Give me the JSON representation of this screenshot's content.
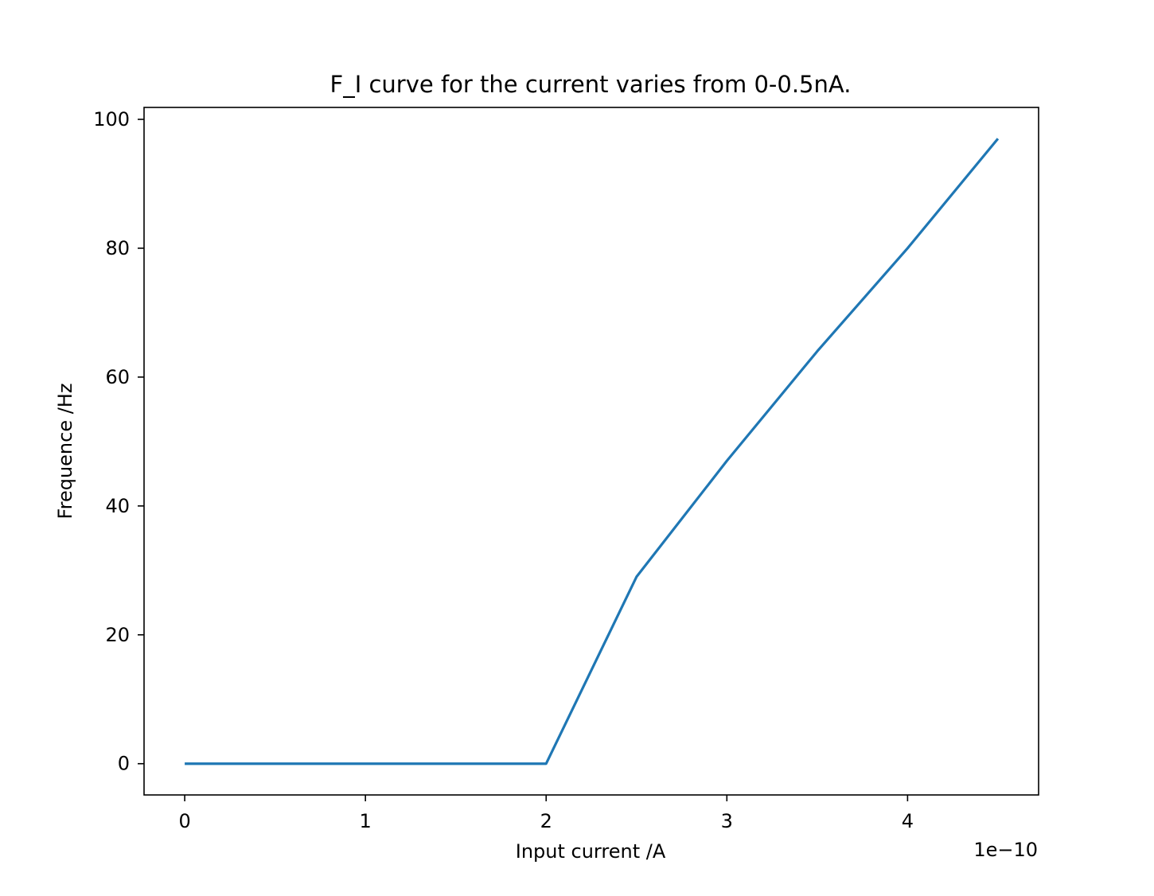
{
  "chart_data": {
    "type": "line",
    "title": "F_I curve for the current varies from 0-0.5nA.",
    "xlabel": "Input current /A",
    "ylabel": "Frequence /Hz",
    "x_offset_label": "1e−10",
    "x_scale_exponent": -10,
    "xlim": [
      -2.25e-11,
      4.725e-10
    ],
    "ylim": [
      -4.85,
      101.85
    ],
    "x_ticks": [
      0,
      1e-10,
      2e-10,
      3e-10,
      4e-10
    ],
    "x_tick_labels": [
      "0",
      "1",
      "2",
      "3",
      "4"
    ],
    "y_ticks": [
      0,
      20,
      40,
      60,
      80,
      100
    ],
    "y_tick_labels": [
      "0",
      "20",
      "40",
      "60",
      "80",
      "100"
    ],
    "grid": false,
    "legend": "none",
    "series": [
      {
        "color": "#1f77b4",
        "x": [
          0,
          5e-11,
          1e-10,
          1.5e-10,
          2e-10,
          2.5e-10,
          3e-10,
          3.5e-10,
          4e-10,
          4.5e-10
        ],
        "y": [
          0,
          0,
          0,
          0,
          0,
          29,
          47,
          64,
          80,
          97
        ]
      }
    ]
  }
}
